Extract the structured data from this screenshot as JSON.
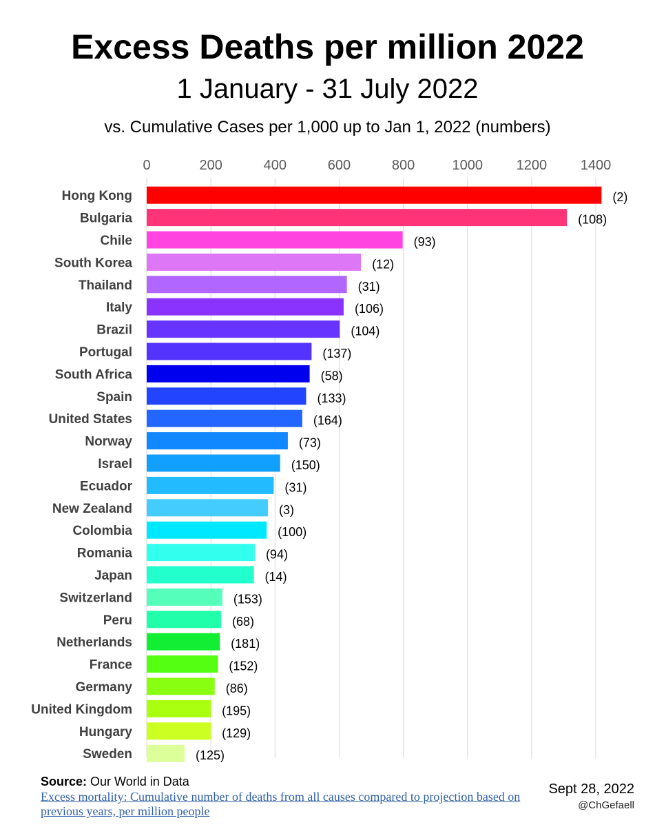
{
  "chart_data": {
    "type": "bar",
    "orientation": "horizontal",
    "title": "Excess Deaths per million 2022",
    "subtitle": "1 January - 31 July 2022",
    "note": "vs. Cumulative Cases per 1,000 up to Jan 1, 2022 (numbers)",
    "xlim": [
      0,
      1400
    ],
    "xticks": [
      "0",
      "200",
      "400",
      "600",
      "800",
      "1000",
      "1200",
      "1400"
    ],
    "tick_values": [
      0,
      200,
      400,
      600,
      800,
      1000,
      1200,
      1400
    ],
    "grid": true,
    "categories": [
      "Hong Kong",
      "Bulgaria",
      "Chile",
      "South Korea",
      "Thailand",
      "Italy",
      "Brazil",
      "Portugal",
      "South Africa",
      "Spain",
      "United States",
      "Norway",
      "Israel",
      "Ecuador",
      "New Zealand",
      "Colombia",
      "Romania",
      "Japan",
      "Switzerland",
      "Peru",
      "Netherlands",
      "France",
      "Germany",
      "United Kingdom",
      "Hungary",
      "Sweden"
    ],
    "values": [
      1418,
      1310,
      798,
      668,
      624,
      614,
      602,
      514,
      508,
      497,
      485,
      440,
      416,
      396,
      378,
      374,
      337,
      334,
      236,
      232,
      228,
      222,
      212,
      200,
      200,
      118
    ],
    "labels": [
      "(2)",
      "(108)",
      "(93)",
      "(12)",
      "(31)",
      "(106)",
      "(104)",
      "(137)",
      "(58)",
      "(133)",
      "(164)",
      "(73)",
      "(150)",
      "(31)",
      "(3)",
      "(100)",
      "(94)",
      "(14)",
      "(153)",
      "(68)",
      "(181)",
      "(152)",
      "(86)",
      "(195)",
      "(129)",
      "(125)"
    ],
    "colors": [
      "#ff0000",
      "#ff3377",
      "#ff44e0",
      "#dd77f5",
      "#b066ff",
      "#8a33ff",
      "#6633ff",
      "#5533ff",
      "#0000ee",
      "#2244ff",
      "#2266ff",
      "#1188ff",
      "#11a0ff",
      "#22bbff",
      "#44ccff",
      "#00e8ff",
      "#33ffee",
      "#22ffcc",
      "#55ffbb",
      "#22ffaa",
      "#11ee33",
      "#55ff11",
      "#88ff11",
      "#aaff11",
      "#ccff22",
      "#ddff99"
    ]
  },
  "footer": {
    "source_label": "Source:",
    "source_name": "Our World in Data",
    "source_link_text": "Excess mortality: Cumulative number of deaths from all causes compared to projection based on previous years, per million people",
    "date": "Sept 28, 2022",
    "handle": "@ChGefaell"
  }
}
